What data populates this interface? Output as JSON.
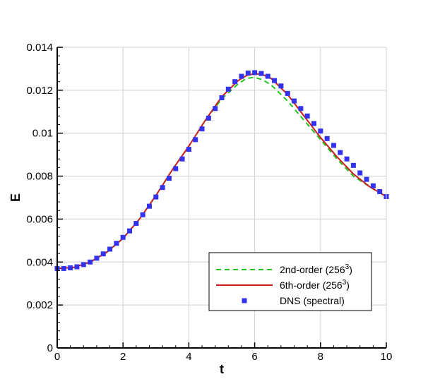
{
  "chart_data": {
    "type": "line",
    "xlabel": "t",
    "ylabel": "E",
    "xlim": [
      0,
      10
    ],
    "ylim": [
      0,
      0.014
    ],
    "grid": true,
    "x_ticks": [
      0,
      2,
      4,
      6,
      8,
      10
    ],
    "x_tick_labels": [
      "0",
      "2",
      "4",
      "6",
      "8",
      "10"
    ],
    "y_ticks": [
      0,
      0.002,
      0.004,
      0.006,
      0.008,
      0.01,
      0.012,
      0.014
    ],
    "y_tick_labels": [
      "0",
      "0.002",
      "0.004",
      "0.006",
      "0.008",
      "0.01",
      "0.012",
      "0.014"
    ],
    "legend_position": "lower-right",
    "series": [
      {
        "name": "2nd-order (256",
        "name_sup": "3",
        "name_suffix": ")",
        "style": "dashed-line",
        "color": "#22c41e",
        "x": [
          0,
          0.5,
          1,
          1.5,
          2,
          2.5,
          3,
          3.5,
          4,
          4.5,
          5,
          5.5,
          5.75,
          6,
          6.25,
          6.5,
          7,
          7.5,
          8,
          8.5,
          9,
          9.5,
          10
        ],
        "y": [
          0.0037,
          0.00375,
          0.004,
          0.00445,
          0.0051,
          0.006,
          0.0071,
          0.0083,
          0.0094,
          0.0106,
          0.0116,
          0.0123,
          0.01255,
          0.0126,
          0.01248,
          0.01225,
          0.0115,
          0.0106,
          0.0097,
          0.0088,
          0.008,
          0.0075,
          0.00705
        ]
      },
      {
        "name": "6th-order (256",
        "name_sup": "3",
        "name_suffix": ")",
        "style": "solid-line",
        "color": "#c81e1e",
        "x": [
          0,
          0.5,
          1,
          1.5,
          2,
          2.5,
          3,
          3.5,
          4,
          4.5,
          5,
          5.5,
          5.75,
          6,
          6.25,
          6.5,
          7,
          7.5,
          8,
          8.5,
          9,
          9.5,
          10
        ],
        "y": [
          0.0037,
          0.00375,
          0.004,
          0.00445,
          0.0051,
          0.006,
          0.0071,
          0.0083,
          0.0094,
          0.0106,
          0.0117,
          0.01245,
          0.01268,
          0.01278,
          0.01272,
          0.01255,
          0.0118,
          0.0108,
          0.0098,
          0.0089,
          0.0081,
          0.0075,
          0.00705
        ]
      },
      {
        "name": "DNS (spectral)",
        "style": "square-markers",
        "color": "#3333ee",
        "x": [
          0,
          0.2,
          0.4,
          0.6,
          0.8,
          1.0,
          1.2,
          1.4,
          1.6,
          1.8,
          2.0,
          2.2,
          2.4,
          2.6,
          2.8,
          3.0,
          3.2,
          3.4,
          3.6,
          3.8,
          4.0,
          4.2,
          4.4,
          4.6,
          4.8,
          5.0,
          5.2,
          5.4,
          5.6,
          5.8,
          6.0,
          6.2,
          6.4,
          6.6,
          6.8,
          7.0,
          7.2,
          7.4,
          7.6,
          7.8,
          8.0,
          8.2,
          8.4,
          8.6,
          8.8,
          9.0,
          9.2,
          9.4,
          9.6,
          9.8,
          10.0
        ],
        "y": [
          0.0037,
          0.0037,
          0.00373,
          0.00378,
          0.00388,
          0.004,
          0.00418,
          0.00438,
          0.0046,
          0.00487,
          0.00515,
          0.00545,
          0.0058,
          0.0062,
          0.0066,
          0.00703,
          0.00747,
          0.0079,
          0.00835,
          0.0088,
          0.00925,
          0.0097,
          0.0102,
          0.0107,
          0.01115,
          0.01165,
          0.01205,
          0.0124,
          0.01265,
          0.0128,
          0.01282,
          0.01278,
          0.01265,
          0.01245,
          0.0122,
          0.01185,
          0.0115,
          0.01115,
          0.0108,
          0.01045,
          0.0101,
          0.00975,
          0.00943,
          0.0091,
          0.0088,
          0.0085,
          0.00815,
          0.00785,
          0.00755,
          0.00728,
          0.00705
        ]
      }
    ]
  }
}
